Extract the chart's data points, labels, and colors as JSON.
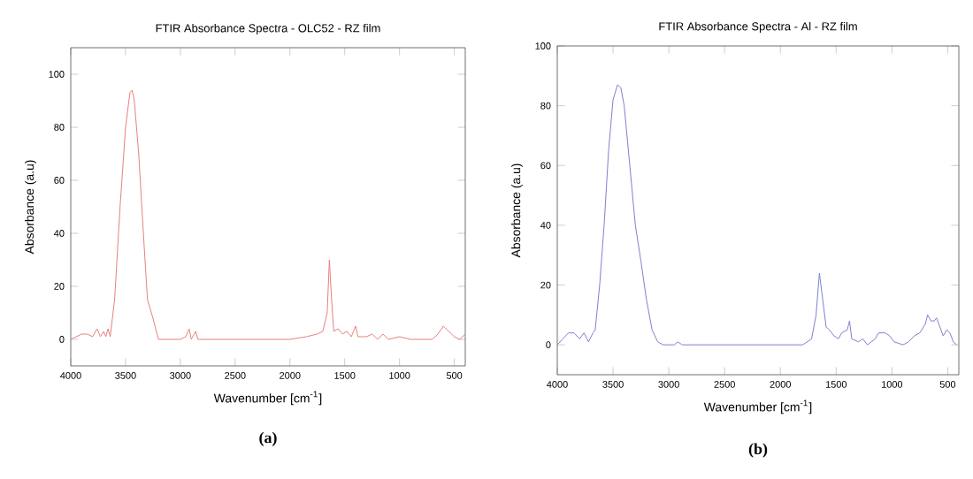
{
  "chart_data": [
    {
      "type": "line",
      "title": "FTIR Absorbance Spectra - OLC52 - RZ film",
      "xlabel": "Wavenumber [cm$^{-1}$]",
      "ylabel": "Absorbance (a.u)",
      "annotations": [
        "(a)"
      ],
      "color": "#e88080",
      "xlim": [
        4000,
        400
      ],
      "ylim": [
        -10,
        110
      ],
      "xticks": [
        4000,
        3500,
        3000,
        2500,
        2000,
        1500,
        1000,
        500
      ],
      "yticks": [
        0,
        20,
        40,
        60,
        80,
        100
      ],
      "x": [
        4000,
        3950,
        3900,
        3850,
        3800,
        3760,
        3730,
        3700,
        3680,
        3660,
        3640,
        3600,
        3550,
        3500,
        3460,
        3440,
        3420,
        3380,
        3330,
        3300,
        3250,
        3200,
        3000,
        2950,
        2920,
        2900,
        2860,
        2840,
        2500,
        2300,
        2000,
        1850,
        1750,
        1700,
        1660,
        1640,
        1620,
        1600,
        1560,
        1520,
        1480,
        1440,
        1400,
        1380,
        1300,
        1250,
        1200,
        1150,
        1100,
        1000,
        900,
        700,
        650,
        600,
        550,
        500,
        450,
        400
      ],
      "values": [
        0,
        1,
        2,
        2,
        1,
        4,
        1,
        3,
        1,
        4,
        1,
        15,
        50,
        80,
        93,
        94,
        90,
        70,
        35,
        15,
        8,
        0,
        0,
        1,
        4,
        0,
        3,
        0,
        0,
        0,
        0,
        1,
        2,
        3,
        10,
        30,
        15,
        3,
        4,
        2,
        3,
        1,
        5,
        1,
        1,
        2,
        0,
        2,
        0,
        1,
        0,
        0,
        2,
        5,
        3,
        1,
        0,
        2
      ]
    },
    {
      "type": "line",
      "title": "FTIR Absorbance Spectra - Al - RZ film",
      "xlabel": "Wavenumber [cm$^{-1}$]",
      "ylabel": "Absorbance (a.u)",
      "annotations": [
        "(b)"
      ],
      "color": "#8080d0",
      "xlim": [
        4000,
        400
      ],
      "ylim": [
        -10,
        100
      ],
      "xticks": [
        4000,
        3500,
        3000,
        2500,
        2000,
        1500,
        1000,
        500
      ],
      "yticks": [
        0,
        20,
        40,
        60,
        80,
        100
      ],
      "x": [
        4000,
        3950,
        3900,
        3850,
        3800,
        3760,
        3720,
        3680,
        3660,
        3620,
        3580,
        3540,
        3500,
        3460,
        3430,
        3400,
        3350,
        3300,
        3250,
        3200,
        3150,
        3100,
        3050,
        2950,
        2920,
        2880,
        2500,
        2000,
        1800,
        1720,
        1680,
        1650,
        1620,
        1590,
        1560,
        1520,
        1480,
        1450,
        1400,
        1380,
        1360,
        1300,
        1260,
        1220,
        1150,
        1120,
        1060,
        1020,
        980,
        900,
        850,
        800,
        750,
        700,
        680,
        650,
        620,
        600,
        570,
        540,
        510,
        480,
        450,
        420
      ],
      "values": [
        0,
        2,
        4,
        4,
        2,
        4,
        1,
        4,
        5,
        20,
        40,
        65,
        82,
        87,
        86,
        80,
        60,
        40,
        28,
        15,
        5,
        1,
        0,
        0,
        1,
        0,
        0,
        0,
        0,
        2,
        10,
        24,
        15,
        6,
        5,
        3,
        2,
        4,
        5,
        8,
        2,
        1,
        2,
        0,
        2,
        4,
        4,
        3,
        1,
        0,
        1,
        3,
        4,
        7,
        10,
        8,
        8,
        9,
        6,
        3,
        5,
        4,
        1,
        0
      ]
    }
  ]
}
